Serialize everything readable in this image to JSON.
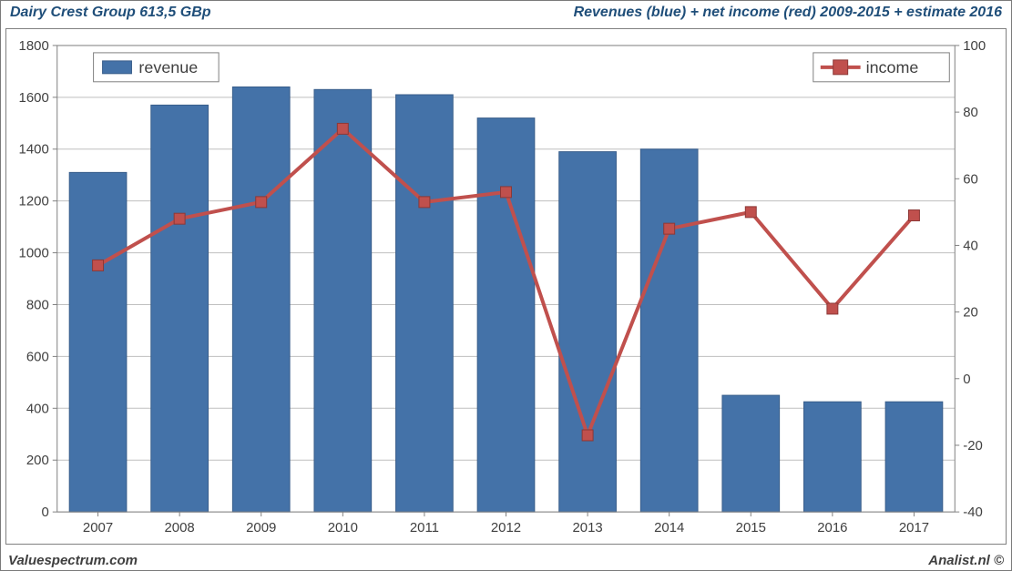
{
  "header": {
    "left": "Dairy Crest Group 613,5 GBp",
    "right": "Revenues (blue) + net income (red) 2009-2015 + estimate 2016",
    "color": "#1f4e79",
    "fontsize_pt": 12,
    "font_weight": "bold",
    "font_style": "italic"
  },
  "footer": {
    "left": "Valuespectrum.com",
    "right": "Analist.nl ©",
    "color": "#404040",
    "fontsize_pt": 11,
    "font_style": "italic",
    "font_weight": "bold"
  },
  "chart": {
    "type": "bar+line-dual-axis",
    "background_color": "#ffffff",
    "plot_border_color": "#808080",
    "gridline_color": "#bfbfbf",
    "categories": [
      "2007",
      "2008",
      "2009",
      "2010",
      "2011",
      "2012",
      "2013",
      "2014",
      "2015",
      "2016",
      "2017"
    ],
    "bar_series": {
      "name": "revenue",
      "axis": "left",
      "color": "#4472a8",
      "border_color": "#385d8a",
      "bar_width_ratio": 0.7,
      "values": [
        1310,
        1570,
        1640,
        1630,
        1610,
        1520,
        1390,
        1400,
        450,
        425,
        425
      ]
    },
    "line_series": {
      "name": "income",
      "axis": "right",
      "line_color": "#c0504d",
      "line_width": 4,
      "marker_shape": "square",
      "marker_size": 12,
      "marker_fill": "#c0504d",
      "marker_border": "#8c3836",
      "values": [
        34,
        48,
        53,
        75,
        53,
        56,
        -17,
        45,
        50,
        21,
        49
      ]
    },
    "axis_left": {
      "min": 0,
      "max": 1800,
      "tick_step": 200,
      "tick_fontsize_pt": 11,
      "tick_color": "#404040"
    },
    "axis_right": {
      "min": -40,
      "max": 100,
      "tick_step": 20,
      "tick_fontsize_pt": 11,
      "tick_color": "#404040"
    },
    "axis_x": {
      "tick_fontsize_pt": 11,
      "tick_color": "#404040"
    },
    "legend": {
      "bar_label": "revenue",
      "line_label": "income",
      "fontsize_pt": 13,
      "text_color": "#404040",
      "box_border": "#808080",
      "box_fill": "#ffffff"
    }
  }
}
